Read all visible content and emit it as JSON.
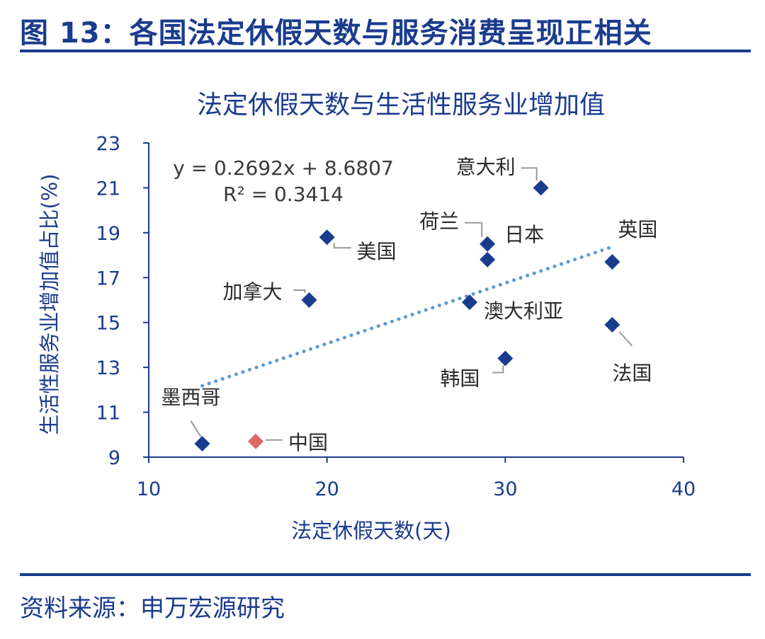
{
  "figure": {
    "title": "图 13：各国法定休假天数与服务消费呈现正相关",
    "source": "资料来源：申万宏源研究"
  },
  "chart_data": {
    "type": "scatter",
    "title": "法定休假天数与生活性服务业增加值",
    "xlabel": "法定休假天数(天)",
    "ylabel": "生活性服务业增加值占比(%)",
    "xlim": [
      10,
      40
    ],
    "ylim": [
      9,
      23
    ],
    "xticks": [
      "10",
      "20",
      "30",
      "40"
    ],
    "yticks": [
      "9",
      "11",
      "13",
      "15",
      "17",
      "19",
      "21",
      "23"
    ],
    "grid": false,
    "colors": {
      "axis": "#1a3c8e",
      "point": "#1a3c8e",
      "highlight": "#e06666",
      "trend": "#5b9bd5",
      "leader": "#999999"
    },
    "points": [
      {
        "label": "意大利",
        "x": 32,
        "y": 21.0
      },
      {
        "label": "美国",
        "x": 20,
        "y": 18.8
      },
      {
        "label": "荷兰",
        "x": 29,
        "y": 18.5
      },
      {
        "label": "日本",
        "x": 29,
        "y": 17.8
      },
      {
        "label": "英国",
        "x": 36,
        "y": 17.7
      },
      {
        "label": "加拿大",
        "x": 19,
        "y": 16.0
      },
      {
        "label": "澳大利亚",
        "x": 28,
        "y": 15.9
      },
      {
        "label": "法国",
        "x": 36,
        "y": 14.9
      },
      {
        "label": "韩国",
        "x": 30,
        "y": 13.4
      },
      {
        "label": "墨西哥",
        "x": 13,
        "y": 9.6
      },
      {
        "label": "中国",
        "x": 16,
        "y": 9.7,
        "highlight": true
      }
    ],
    "trendline": {
      "type": "linear",
      "style": "dotted",
      "slope": 0.2692,
      "intercept": 8.6807,
      "x_range": [
        13,
        36
      ],
      "equation": "y = 0.2692x + 8.6807",
      "r2": "R² = 0.3414"
    }
  }
}
